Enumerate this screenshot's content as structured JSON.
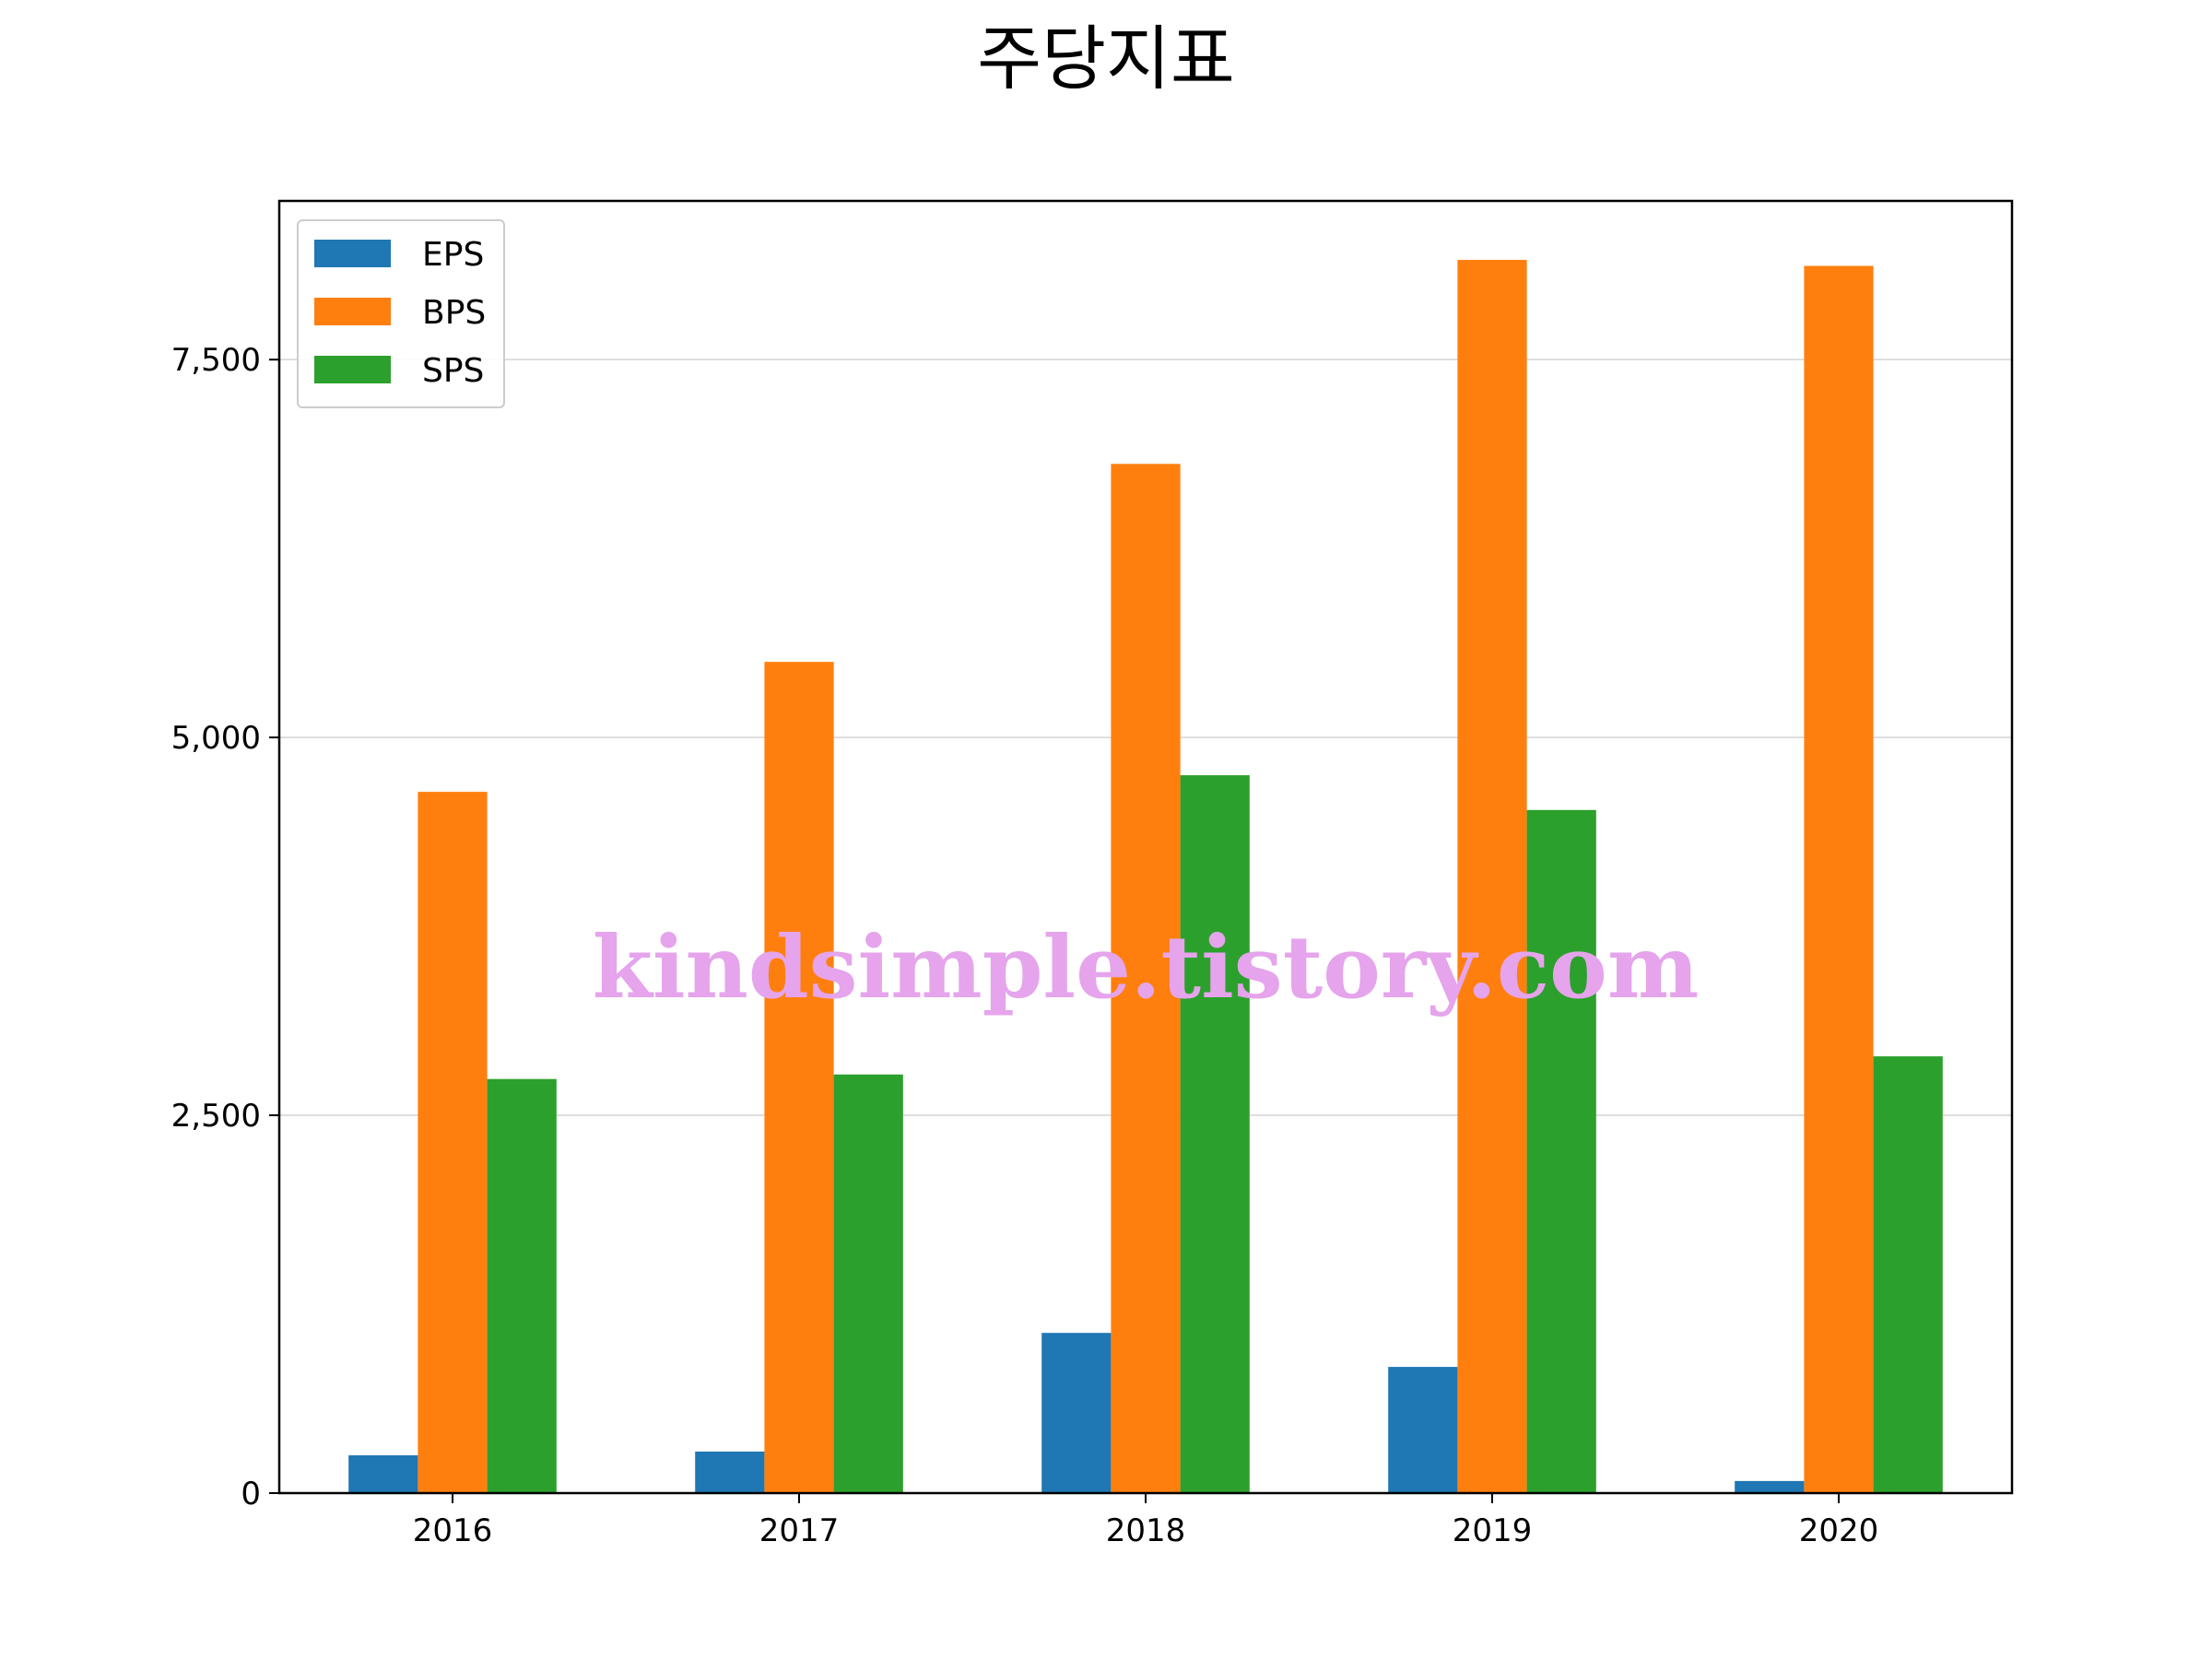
{
  "chart_data": {
    "type": "bar",
    "title": "주당지표",
    "xlabel": "",
    "ylabel": "",
    "categories": [
      "2016",
      "2017",
      "2018",
      "2019",
      "2020"
    ],
    "series": [
      {
        "name": "EPS",
        "color": "#1f77b4",
        "values": [
          250,
          275,
          1060,
          835,
          80
        ]
      },
      {
        "name": "BPS",
        "color": "#ff7f0e",
        "values": [
          4640,
          5500,
          6810,
          8160,
          8120
        ]
      },
      {
        "name": "SPS",
        "color": "#2ca02c",
        "values": [
          2740,
          2770,
          4750,
          4520,
          2890
        ]
      }
    ],
    "ylim": [
      0,
      8550
    ],
    "yticks": [
      0,
      2500,
      5000,
      7500
    ],
    "ytick_labels": [
      "0",
      "2,500",
      "5,000",
      "7,500"
    ],
    "grid": "horizontal",
    "legend_position": "top-left",
    "watermark": "kindsimple.tistory.com"
  }
}
